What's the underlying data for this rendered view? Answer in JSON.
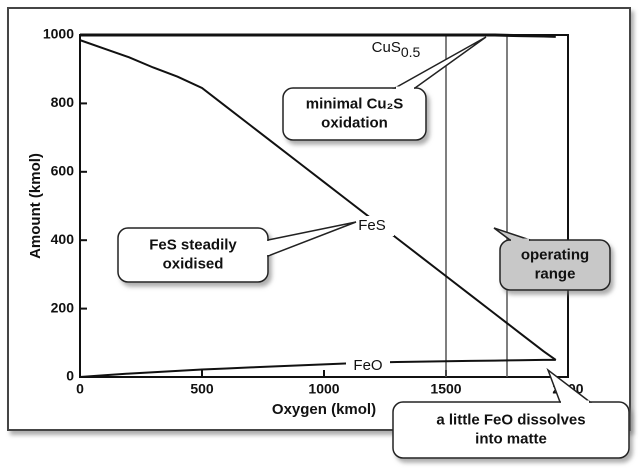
{
  "chart_data": {
    "type": "line",
    "x_label": "Oxygen (kmol)",
    "y_label": "Amount (kmol)",
    "xlim": [
      0,
      2000
    ],
    "ylim": [
      0,
      1000
    ],
    "xticks": [
      0,
      500,
      1000,
      1500,
      2000
    ],
    "yticks": [
      0,
      200,
      400,
      600,
      800,
      1000
    ],
    "x": [
      0,
      100,
      200,
      300,
      400,
      500,
      600,
      700,
      800,
      900,
      1000,
      1100,
      1200,
      1300,
      1400,
      1500,
      1600,
      1700,
      1800,
      1900,
      1950
    ],
    "series": [
      {
        "name": "CuS",
        "subscript": "0.5",
        "color": "#111111",
        "values": [
          1000,
          1000,
          1000,
          1000,
          1000,
          1000,
          1000,
          1000,
          1000,
          1000,
          1000,
          1000,
          1000,
          1000,
          1000,
          1000,
          1000,
          1000,
          998,
          997,
          996
        ]
      },
      {
        "name": "FeS",
        "color": "#111111",
        "values": [
          985,
          960,
          935,
          905,
          878,
          845,
          790,
          735,
          680,
          625,
          570,
          515,
          460,
          405,
          350,
          295,
          240,
          185,
          130,
          75,
          50
        ]
      },
      {
        "name": "FeO",
        "color": "#111111",
        "values": [
          0,
          5,
          10,
          14,
          18,
          22,
          25,
          28,
          31,
          34,
          37,
          40,
          42,
          44,
          45,
          46,
          47,
          48,
          49,
          50,
          50
        ]
      }
    ],
    "operating_range": [
      1500,
      1750
    ],
    "annotations": [
      {
        "lines": [
          "minimal Cu₂S",
          "oxidation"
        ]
      },
      {
        "lines": [
          "FeS steadily",
          "oxidised"
        ]
      },
      {
        "lines": [
          "operating",
          "range"
        ]
      },
      {
        "lines": [
          "a little FeO dissolves",
          "into matte"
        ]
      }
    ]
  }
}
